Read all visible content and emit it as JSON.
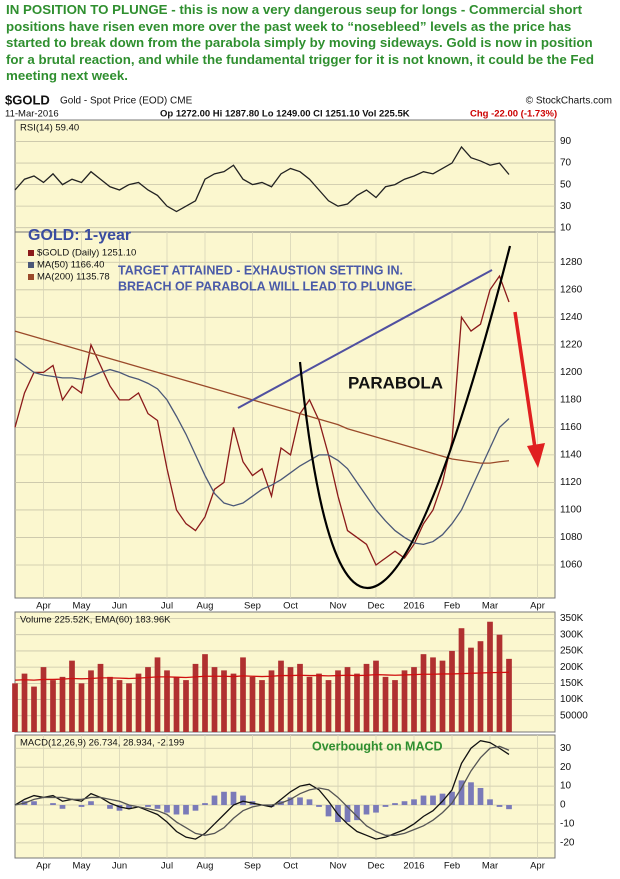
{
  "commentary": "IN POSITION TO PLUNGE - this is now a very dangerous seup for longs - Commercial short positions have risen even more over the past week to “nosebleed” levels as the price has started to break down from the parabola simply by moving sideways. Gold is now in position for a brutal reaction, and while the fundamental trigger for it is not known, it could be the Fed meeting next week.",
  "header": {
    "symbol": "$GOLD",
    "description": "Gold - Spot Price (EOD) CME",
    "credit": "© StockCharts.com",
    "date": "11-Mar-2016",
    "quote": "Op 1272.00 Hi 1287.80 Lo 1249.00 Cl 1251.10 Vol 225.5K",
    "change": "Chg -22.00 (-1.73%)"
  },
  "chart_data": [
    {
      "type": "line",
      "title": "RSI(14) 59.40",
      "ylim": [
        6,
        110
      ],
      "yticks": [
        90,
        70,
        50,
        30,
        10
      ],
      "grid": true,
      "series": [
        {
          "color": "#222222",
          "values": [
            45,
            55,
            58,
            52,
            60,
            50,
            55,
            52,
            62,
            55,
            48,
            45,
            50,
            52,
            45,
            40,
            30,
            25,
            30,
            35,
            55,
            60,
            62,
            68,
            55,
            50,
            52,
            48,
            60,
            65,
            62,
            55,
            45,
            35,
            30,
            32,
            40,
            45,
            38,
            48,
            50,
            55,
            58,
            62,
            60,
            65,
            70,
            85,
            75,
            72,
            68,
            70,
            59.4,
            null,
            null,
            null,
            null
          ]
        }
      ]
    },
    {
      "type": "line",
      "legend": "upper left",
      "ylim": [
        1036,
        1302
      ],
      "yticks": [
        1060,
        1080,
        1100,
        1120,
        1140,
        1160,
        1180,
        1200,
        1220,
        1240,
        1260,
        1280
      ],
      "grid": true,
      "categories": [
        null,
        null,
        null,
        "Apr",
        null,
        null,
        null,
        "May",
        null,
        null,
        null,
        "Jun",
        null,
        null,
        null,
        null,
        "Jul",
        null,
        null,
        null,
        "Aug",
        null,
        null,
        null,
        null,
        "Sep",
        null,
        null,
        null,
        "Oct",
        null,
        null,
        null,
        null,
        "Nov",
        null,
        null,
        null,
        "Dec",
        null,
        null,
        null,
        "2016",
        null,
        null,
        null,
        "Feb",
        null,
        null,
        null,
        "Mar",
        null,
        null,
        null,
        null,
        "Apr",
        null
      ],
      "annotations": [
        "GOLD: 1-year",
        "TARGET ATTAINED - EXHAUSTION SETTING IN.",
        "BREACH OF PARABOLA WILL LEAD TO PLUNGE.",
        "PARABOLA"
      ],
      "series": [
        {
          "name": "$GOLD (Daily) 1251.10",
          "color": "#8b1a1a",
          "values": [
            1160,
            1185,
            1200,
            1200,
            1205,
            1180,
            1190,
            1185,
            1220,
            1205,
            1190,
            1180,
            1180,
            1185,
            1170,
            1165,
            1130,
            1100,
            1090,
            1085,
            1095,
            1115,
            1120,
            1160,
            1135,
            1125,
            1130,
            1110,
            1145,
            1140,
            1170,
            1180,
            1165,
            1140,
            1110,
            1085,
            1080,
            1075,
            1060,
            1065,
            1070,
            1065,
            1075,
            1090,
            1100,
            1120,
            1150,
            1240,
            1230,
            1235,
            1260,
            1270,
            1251.1,
            null,
            null,
            null,
            null
          ]
        },
        {
          "name": "MA(50) 1166.40",
          "color": "#4b5878",
          "values": [
            1210,
            1205,
            1200,
            1198,
            1197,
            1196,
            1196,
            1195,
            1197,
            1200,
            1202,
            1200,
            1197,
            1195,
            1192,
            1188,
            1180,
            1168,
            1155,
            1140,
            1125,
            1112,
            1105,
            1103,
            1105,
            1110,
            1115,
            1118,
            1122,
            1127,
            1132,
            1136,
            1140,
            1140,
            1136,
            1130,
            1120,
            1110,
            1100,
            1092,
            1085,
            1080,
            1076,
            1075,
            1077,
            1082,
            1090,
            1100,
            1115,
            1130,
            1145,
            1160,
            1166.4,
            null,
            null,
            null,
            null
          ]
        },
        {
          "name": "MA(200) 1135.78",
          "color": "#9a4a2a",
          "values": [
            1230,
            1228,
            1226,
            1224,
            1222,
            1220,
            1218,
            1216,
            1214,
            1212,
            1210,
            1208,
            1206,
            1204,
            1202,
            1200,
            1198,
            1196,
            1194,
            1192,
            1190,
            1188,
            1186,
            1184,
            1182,
            1180,
            1178,
            1176,
            1174,
            1172,
            1170,
            1168,
            1166,
            1164,
            1162,
            1159,
            1157,
            1155,
            1153,
            1151,
            1149,
            1147,
            1145,
            1143,
            1141,
            1139,
            1137,
            1136,
            1135,
            1134,
            1134,
            1135,
            1135.78,
            null,
            null,
            null,
            null
          ]
        }
      ]
    },
    {
      "type": "bar",
      "title": "Volume 225.52K, EMA(60) 183.96K",
      "ylim": [
        0,
        370000
      ],
      "grid": true,
      "yticks": [
        {
          "value": 350000,
          "label": "350K"
        },
        {
          "value": 300000,
          "label": "300K"
        },
        {
          "value": 250000,
          "label": "250K"
        },
        {
          "value": 200000,
          "label": "200K"
        },
        {
          "value": 150000,
          "label": "150K"
        },
        {
          "value": 100000,
          "label": "100K"
        },
        50000
      ],
      "series": [
        {
          "color": "#b03030",
          "values": [
            150000,
            180000,
            140000,
            200000,
            160000,
            170000,
            220000,
            150000,
            190000,
            210000,
            170000,
            160000,
            150000,
            180000,
            200000,
            230000,
            190000,
            170000,
            160000,
            210000,
            240000,
            200000,
            190000,
            180000,
            230000,
            170000,
            160000,
            190000,
            220000,
            200000,
            210000,
            170000,
            180000,
            160000,
            190000,
            200000,
            180000,
            210000,
            220000,
            170000,
            160000,
            190000,
            200000,
            240000,
            230000,
            220000,
            250000,
            320000,
            260000,
            280000,
            340000,
            300000,
            225520,
            null,
            null,
            null,
            null
          ]
        },
        {
          "type": "line",
          "color": "#d01010",
          "values": [
            160000,
            161000,
            160000,
            162000,
            162000,
            163000,
            165000,
            164000,
            165000,
            167000,
            167000,
            166000,
            165000,
            166000,
            168000,
            170000,
            170000,
            169000,
            168000,
            170000,
            172000,
            172000,
            172000,
            171000,
            173000,
            172000,
            171000,
            172000,
            174000,
            174000,
            175000,
            174000,
            174000,
            173000,
            174000,
            175000,
            174000,
            175000,
            177000,
            176000,
            175000,
            176000,
            177000,
            178000,
            178000,
            179000,
            179000,
            180000,
            181000,
            182000,
            183000,
            183500,
            183960,
            null,
            null,
            null,
            null
          ]
        }
      ]
    },
    {
      "type": "line",
      "title": "MACD(12,26,9) 26.734, 28.934, -2.199",
      "ylim": [
        -28,
        37
      ],
      "yticks": [
        30,
        20,
        10,
        0,
        -10,
        -20
      ],
      "grid": true,
      "categories": [
        null,
        null,
        null,
        "Apr",
        null,
        null,
        null,
        "May",
        null,
        null,
        null,
        "Jun",
        null,
        null,
        null,
        null,
        "Jul",
        null,
        null,
        null,
        "Aug",
        null,
        null,
        null,
        null,
        "Sep",
        null,
        null,
        null,
        "Oct",
        null,
        null,
        null,
        null,
        "Nov",
        null,
        null,
        null,
        "Dec",
        null,
        null,
        null,
        "2016",
        null,
        null,
        null,
        "Feb",
        null,
        null,
        null,
        "Mar",
        null,
        null,
        null,
        null,
        "Apr",
        null
      ],
      "annotations": [
        "Overbought on MACD"
      ],
      "series": [
        {
          "type": "bar",
          "color": "#7a7ab8",
          "values": [
            0,
            2,
            2,
            0,
            1,
            -2,
            0,
            -1,
            2,
            0,
            -2,
            -3,
            -2,
            0,
            -1,
            -2,
            -4,
            -5,
            -5,
            -3,
            1,
            5,
            7,
            7,
            5,
            2,
            0,
            -1,
            2,
            4,
            4,
            3,
            -1,
            -6,
            -9,
            -9,
            -8,
            -5,
            -4,
            -1,
            1,
            2,
            3,
            5,
            5,
            6,
            7,
            13,
            12,
            9,
            3,
            -1,
            -2.199,
            null,
            null,
            null,
            null
          ]
        },
        {
          "color": "#111111",
          "values": [
            0,
            3,
            5,
            4,
            5,
            2,
            3,
            2,
            6,
            4,
            1,
            -1,
            -2,
            -1,
            -3,
            -5,
            -9,
            -14,
            -17,
            -18,
            -15,
            -10,
            -5,
            0,
            2,
            1,
            0,
            -1,
            3,
            7,
            10,
            11,
            8,
            2,
            -5,
            -10,
            -14,
            -16,
            -18,
            -17,
            -15,
            -13,
            -10,
            -6,
            -3,
            2,
            8,
            22,
            30,
            34,
            33,
            30,
            26.734,
            null,
            null,
            null,
            null
          ]
        },
        {
          "color": "#555555",
          "values": [
            0,
            1,
            3,
            4,
            4,
            4,
            3,
            3,
            4,
            4,
            3,
            2,
            0,
            -1,
            -2,
            -3,
            -5,
            -9,
            -12,
            -15,
            -16,
            -15,
            -12,
            -7,
            -3,
            -1,
            0,
            0,
            1,
            3,
            6,
            8,
            9,
            8,
            4,
            -1,
            -6,
            -11,
            -14,
            -16,
            -16,
            -15,
            -13,
            -11,
            -8,
            -4,
            1,
            9,
            18,
            25,
            30,
            31,
            28.934,
            null,
            null,
            null,
            null
          ]
        }
      ]
    }
  ]
}
